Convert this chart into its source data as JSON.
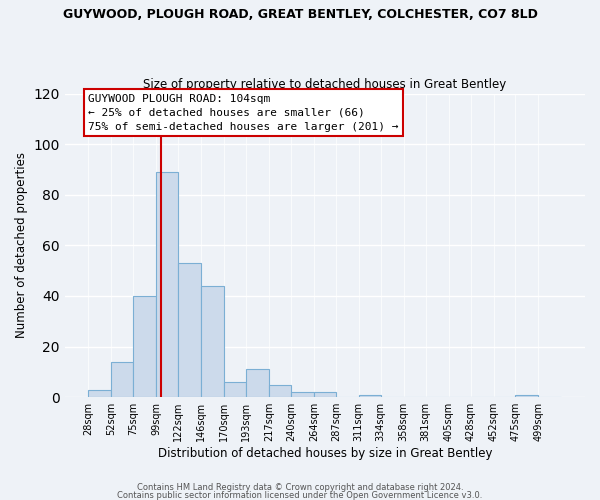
{
  "title": "GUYWOOD, PLOUGH ROAD, GREAT BENTLEY, COLCHESTER, CO7 8LD",
  "subtitle": "Size of property relative to detached houses in Great Bentley",
  "xlabel": "Distribution of detached houses by size in Great Bentley",
  "ylabel": "Number of detached properties",
  "bar_color": "#ccdaeb",
  "bar_edge_color": "#7bafd4",
  "background_color": "#eef2f7",
  "bin_labels": [
    "28sqm",
    "52sqm",
    "75sqm",
    "99sqm",
    "122sqm",
    "146sqm",
    "170sqm",
    "193sqm",
    "217sqm",
    "240sqm",
    "264sqm",
    "287sqm",
    "311sqm",
    "334sqm",
    "358sqm",
    "381sqm",
    "405sqm",
    "428sqm",
    "452sqm",
    "475sqm",
    "499sqm"
  ],
  "bin_edges": [
    28,
    52,
    75,
    99,
    122,
    146,
    170,
    193,
    217,
    240,
    264,
    287,
    311,
    334,
    358,
    381,
    405,
    428,
    452,
    475,
    499
  ],
  "bar_heights": [
    3,
    14,
    40,
    89,
    53,
    44,
    6,
    11,
    5,
    2,
    2,
    0,
    1,
    0,
    0,
    0,
    0,
    0,
    0,
    1,
    0
  ],
  "ylim": [
    0,
    120
  ],
  "yticks": [
    0,
    20,
    40,
    60,
    80,
    100,
    120
  ],
  "vline_x": 104,
  "vline_color": "#cc0000",
  "annotation_title": "GUYWOOD PLOUGH ROAD: 104sqm",
  "annotation_line1": "← 25% of detached houses are smaller (66)",
  "annotation_line2": "75% of semi-detached houses are larger (201) →",
  "annotation_box_color": "#ffffff",
  "annotation_box_edge": "#cc0000",
  "footer1": "Contains HM Land Registry data © Crown copyright and database right 2024.",
  "footer2": "Contains public sector information licensed under the Open Government Licence v3.0."
}
